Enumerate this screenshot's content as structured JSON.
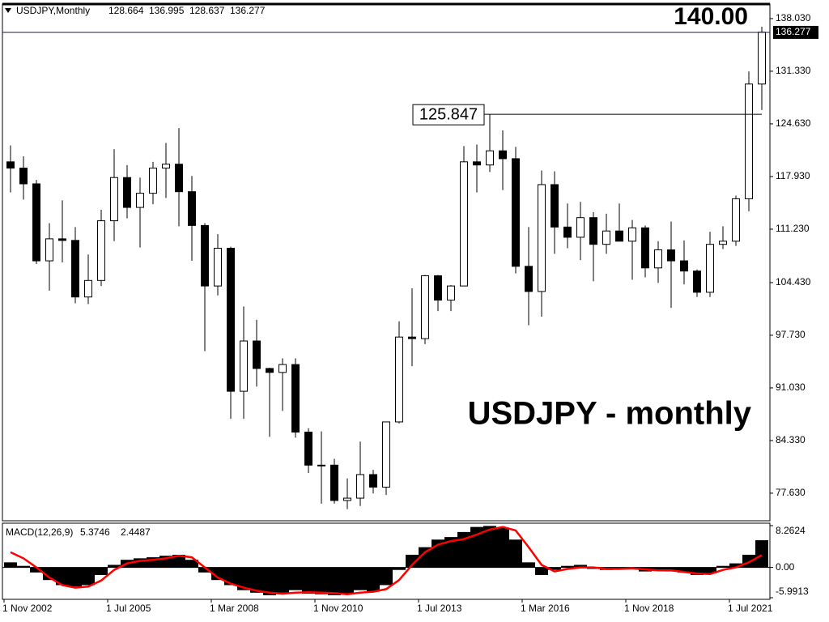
{
  "chart_data": {
    "type": "candlestick",
    "title": "USDJPY,Monthly",
    "quote": {
      "open": 128.664,
      "high": 136.995,
      "low": 128.637,
      "close": 136.277
    },
    "level_label": "140.00",
    "watermark": "USDJPY - monthly",
    "peak_label": 125.847,
    "up_color": "#ffffff",
    "down_color": "#000000",
    "price_line_color": "#1a1a4a",
    "x": [
      "2003-01",
      "2003-05",
      "2003-09",
      "2004-01",
      "2004-05",
      "2004-09",
      "2005-01",
      "2005-05",
      "2005-09",
      "2006-01",
      "2006-05",
      "2006-09",
      "2007-01",
      "2007-05",
      "2007-09",
      "2008-01",
      "2008-05",
      "2008-09",
      "2009-01",
      "2009-05",
      "2009-09",
      "2010-01",
      "2010-05",
      "2010-09",
      "2011-01",
      "2011-05",
      "2011-09",
      "2012-01",
      "2012-05",
      "2012-09",
      "2013-01",
      "2013-05",
      "2013-09",
      "2014-01",
      "2014-05",
      "2014-09",
      "2015-01",
      "2015-05",
      "2015-09",
      "2016-01",
      "2016-05",
      "2016-09",
      "2017-01",
      "2017-05",
      "2017-09",
      "2018-01",
      "2018-05",
      "2018-09",
      "2019-01",
      "2019-05",
      "2019-09",
      "2020-01",
      "2020-05",
      "2020-09",
      "2021-01",
      "2021-05",
      "2021-09",
      "2022-01",
      "2022-05"
    ],
    "open": [
      119.8,
      119.0,
      117.0,
      107.2,
      110.0,
      109.8,
      102.6,
      104.7,
      112.3,
      117.8,
      114.0,
      115.8,
      119.0,
      119.5,
      116.0,
      111.7,
      104.0,
      108.8,
      90.6,
      97.0,
      93.5,
      93.0,
      94.0,
      85.4,
      81.2,
      81.2,
      76.7,
      77.0,
      80.0,
      78.4,
      86.7,
      97.5,
      97.3,
      105.3,
      102.2,
      104.0,
      119.8,
      119.4,
      121.2,
      120.2,
      106.5,
      103.3,
      116.9,
      111.5,
      110.2,
      112.7,
      109.3,
      111.0,
      109.7,
      111.4,
      106.3,
      108.6,
      107.2,
      105.9,
      103.2,
      109.3,
      109.7,
      115.1,
      129.7
    ],
    "high": [
      121.9,
      120.5,
      117.5,
      112.0,
      114.9,
      111.5,
      108.0,
      113.7,
      121.4,
      119.4,
      117.8,
      119.8,
      122.2,
      124.1,
      118.0,
      112.0,
      110.6,
      109.0,
      101.4,
      99.7,
      93.6,
      94.8,
      94.8,
      85.9,
      85.5,
      82.0,
      79.5,
      84.2,
      80.6,
      86.7,
      99.5,
      103.7,
      105.4,
      105.4,
      104.1,
      121.8,
      122.0,
      125.85,
      123.8,
      121.7,
      111.5,
      118.7,
      118.6,
      114.5,
      114.7,
      113.4,
      113.2,
      114.5,
      112.4,
      111.7,
      109.7,
      112.2,
      109.8,
      106.1,
      110.9,
      111.6,
      115.5,
      131.3,
      137.0
    ],
    "low": [
      115.9,
      115.0,
      106.8,
      103.4,
      107.0,
      101.8,
      101.7,
      104.0,
      109.7,
      112.6,
      108.9,
      114.4,
      115.2,
      111.6,
      107.2,
      95.7,
      102.8,
      87.1,
      87.1,
      91.2,
      84.8,
      88.1,
      84.7,
      80.2,
      76.3,
      76.3,
      75.6,
      76.0,
      77.6,
      77.4,
      86.5,
      93.8,
      96.6,
      100.8,
      100.8,
      104.0,
      115.9,
      118.5,
      116.2,
      105.6,
      99.0,
      100.1,
      108.1,
      108.8,
      107.3,
      104.6,
      108.1,
      109.8,
      104.8,
      105.1,
      104.4,
      101.2,
      104.2,
      102.6,
      102.6,
      108.7,
      109.1,
      113.5,
      126.4
    ],
    "close": [
      119.0,
      117.0,
      107.2,
      110.0,
      109.8,
      102.6,
      104.7,
      112.3,
      117.8,
      114.0,
      115.8,
      119.0,
      119.5,
      116.0,
      111.7,
      104.0,
      108.8,
      90.6,
      97.0,
      93.5,
      93.0,
      94.0,
      85.4,
      81.2,
      81.2,
      76.7,
      77.0,
      80.0,
      78.4,
      86.7,
      97.5,
      97.3,
      105.3,
      102.2,
      104.0,
      119.8,
      119.4,
      121.2,
      120.2,
      106.5,
      103.3,
      116.9,
      111.5,
      110.2,
      112.7,
      109.3,
      111.0,
      109.7,
      111.4,
      106.3,
      108.6,
      107.2,
      105.9,
      103.2,
      109.3,
      109.7,
      115.1,
      129.7,
      136.3
    ],
    "xlim": [
      "2002-11",
      "2022-07"
    ],
    "xticks": [
      {
        "value": "2002-11",
        "label": "1 Nov 2002"
      },
      {
        "value": "2005-07",
        "label": "1 Jul 2005"
      },
      {
        "value": "2008-03",
        "label": "1 Mar 2008"
      },
      {
        "value": "2010-11",
        "label": "1 Nov 2010"
      },
      {
        "value": "2013-07",
        "label": "1 Jul 2013"
      },
      {
        "value": "2016-03",
        "label": "1 Mar 2016"
      },
      {
        "value": "2018-11",
        "label": "1 Nov 2018"
      },
      {
        "value": "2021-07",
        "label": "1 Jul 2021"
      }
    ],
    "ylim": [
      74.12,
      139.88
    ],
    "yticks": [
      {
        "value": 138.03,
        "label": "138.030"
      },
      {
        "value": 131.33,
        "label": "131.330"
      },
      {
        "value": 124.63,
        "label": "124.630"
      },
      {
        "value": 117.93,
        "label": "117.930"
      },
      {
        "value": 111.23,
        "label": "111.230"
      },
      {
        "value": 104.43,
        "label": "104.430"
      },
      {
        "value": 97.73,
        "label": "97.730"
      },
      {
        "value": 91.03,
        "label": "91.030"
      },
      {
        "value": 84.33,
        "label": "84.330"
      },
      {
        "value": 77.63,
        "label": "77.630"
      }
    ],
    "indicator": {
      "title": "MACD(12,26,9)",
      "ylim": [
        -5.9913,
        8.2624
      ],
      "yticks": [
        8.2624,
        {
          "value": 0,
          "label": "0.00"
        },
        -5.9913
      ],
      "histogram": {
        "color": "#000000",
        "values": [
          1.0,
          0.3,
          -1.0,
          -2.5,
          -3.5,
          -3.8,
          -3.5,
          -1.5,
          0.5,
          1.5,
          1.8,
          2.0,
          2.3,
          2.5,
          1.5,
          -1.0,
          -2.5,
          -3.5,
          -4.5,
          -5.0,
          -5.5,
          -5.0,
          -4.5,
          -5.2,
          -5.3,
          -5.5,
          -5.3,
          -4.5,
          -4.8,
          -3.5,
          -0.5,
          2.5,
          4.0,
          5.5,
          6.0,
          7.0,
          8.0,
          8.2,
          7.8,
          5.5,
          1.0,
          -1.5,
          -0.5,
          0.3,
          0.5,
          -0.3,
          -0.5,
          -0.3,
          -0.2,
          -0.8,
          -0.6,
          -0.8,
          -1.0,
          -1.5,
          -1.2,
          0.3,
          0.8,
          2.5,
          5.3746
        ]
      },
      "signal": {
        "color": "#ff0000",
        "values": [
          3.0,
          1.8,
          0.0,
          -2.0,
          -3.5,
          -4.0,
          -3.8,
          -2.6,
          -0.5,
          0.8,
          1.3,
          1.5,
          1.8,
          2.3,
          2.0,
          0.0,
          -2.0,
          -3.2,
          -4.0,
          -4.6,
          -5.0,
          -5.2,
          -5.0,
          -4.9,
          -5.0,
          -5.1,
          -5.3,
          -5.0,
          -4.8,
          -4.3,
          -2.5,
          0.5,
          3.0,
          4.5,
          5.2,
          5.6,
          6.5,
          7.5,
          8.0,
          7.3,
          4.0,
          0.5,
          -0.8,
          -0.3,
          0.0,
          0.0,
          -0.3,
          -0.3,
          -0.2,
          -0.4,
          -0.6,
          -0.6,
          -0.9,
          -1.2,
          -1.3,
          -0.5,
          0.0,
          1.0,
          2.4487
        ]
      }
    }
  }
}
